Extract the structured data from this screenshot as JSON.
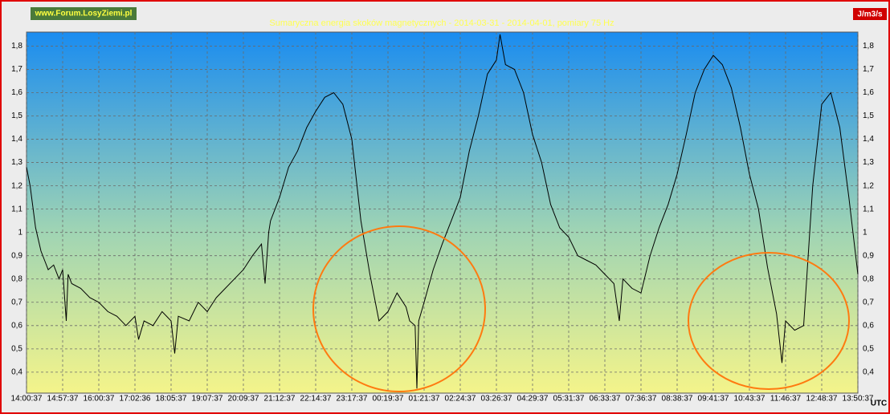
{
  "chart_data": {
    "type": "line",
    "title": "Sumaryczna energia skoków magnetycznych - 2014-03-31 - 2014-04-01, pomiary 75 Hz",
    "watermark": "www.Forum.LosyZiemi.pl",
    "unit": "J/m3/s",
    "x_label": "UTC",
    "grid": true,
    "xlim": [
      0,
      23
    ],
    "xticks": [
      {
        "value": 0,
        "label": "14:00:37"
      },
      {
        "value": 1,
        "label": "14:57:37"
      },
      {
        "value": 2,
        "label": "16:00:37"
      },
      {
        "value": 3,
        "label": "17:02:36"
      },
      {
        "value": 4,
        "label": "18:05:37"
      },
      {
        "value": 5,
        "label": "19:07:37"
      },
      {
        "value": 6,
        "label": "20:09:37"
      },
      {
        "value": 7,
        "label": "21:12:37"
      },
      {
        "value": 8,
        "label": "22:14:37"
      },
      {
        "value": 9,
        "label": "23:17:37"
      },
      {
        "value": 10,
        "label": "00:19:37"
      },
      {
        "value": 11,
        "label": "01:21:37"
      },
      {
        "value": 12,
        "label": "02:24:37"
      },
      {
        "value": 13,
        "label": "03:26:37"
      },
      {
        "value": 14,
        "label": "04:29:37"
      },
      {
        "value": 15,
        "label": "05:31:37"
      },
      {
        "value": 16,
        "label": "06:33:37"
      },
      {
        "value": 17,
        "label": "07:36:37"
      },
      {
        "value": 18,
        "label": "08:38:37"
      },
      {
        "value": 19,
        "label": "09:41:37"
      },
      {
        "value": 20,
        "label": "10:43:37"
      },
      {
        "value": 21,
        "label": "11:46:37"
      },
      {
        "value": 22,
        "label": "12:48:37"
      },
      {
        "value": 23,
        "label": "13:50:37"
      }
    ],
    "ylim": [
      0.31,
      1.86
    ],
    "yticks": [
      {
        "value": 0.4,
        "label": "0,4"
      },
      {
        "value": 0.5,
        "label": "0,5"
      },
      {
        "value": 0.6,
        "label": "0,6"
      },
      {
        "value": 0.7,
        "label": "0,7"
      },
      {
        "value": 0.8,
        "label": "0,8"
      },
      {
        "value": 0.9,
        "label": "0,9"
      },
      {
        "value": 1,
        "label": "1"
      },
      {
        "value": 1.1,
        "label": "1,1"
      },
      {
        "value": 1.2,
        "label": "1,2"
      },
      {
        "value": 1.3,
        "label": "1,3"
      },
      {
        "value": 1.4,
        "label": "1,4"
      },
      {
        "value": 1.5,
        "label": "1,5"
      },
      {
        "value": 1.6,
        "label": "1,6"
      },
      {
        "value": 1.7,
        "label": "1,7"
      },
      {
        "value": 1.8,
        "label": "1,8"
      }
    ],
    "x": [
      0,
      0.1,
      0.25,
      0.4,
      0.5,
      0.6,
      0.75,
      0.9,
      1,
      1.1,
      1.15,
      1.25,
      1.5,
      1.75,
      2,
      2.25,
      2.5,
      2.75,
      3,
      3.1,
      3.25,
      3.5,
      3.75,
      4,
      4.1,
      4.2,
      4.5,
      4.75,
      5,
      5.25,
      5.5,
      5.75,
      6,
      6.25,
      6.5,
      6.6,
      6.7,
      6.75,
      7,
      7.25,
      7.5,
      7.75,
      8,
      8.25,
      8.5,
      8.75,
      9,
      9.25,
      9.5,
      9.75,
      10,
      10.25,
      10.5,
      10.6,
      10.75,
      10.8,
      10.85,
      11,
      11.25,
      11.5,
      11.75,
      12,
      12.25,
      12.5,
      12.75,
      13,
      13.1,
      13.25,
      13.5,
      13.75,
      14,
      14.25,
      14.5,
      14.75,
      15,
      15.25,
      15.5,
      15.75,
      16,
      16.25,
      16.4,
      16.5,
      16.75,
      17,
      17.25,
      17.5,
      17.75,
      18,
      18.25,
      18.5,
      18.75,
      19,
      19.25,
      19.5,
      19.75,
      20,
      20.25,
      20.5,
      20.75,
      20.9,
      21,
      21.25,
      21.5,
      21.75,
      22,
      22.25,
      22.5,
      22.75,
      23
    ],
    "series": [
      {
        "color": "#000000",
        "values": [
          1.28,
          1.2,
          1.02,
          0.92,
          0.88,
          0.84,
          0.86,
          0.8,
          0.84,
          0.62,
          0.82,
          0.78,
          0.76,
          0.72,
          0.7,
          0.66,
          0.64,
          0.6,
          0.64,
          0.54,
          0.62,
          0.6,
          0.66,
          0.62,
          0.48,
          0.64,
          0.62,
          0.7,
          0.66,
          0.72,
          0.76,
          0.8,
          0.84,
          0.9,
          0.95,
          0.78,
          1.0,
          1.05,
          1.15,
          1.28,
          1.35,
          1.45,
          1.52,
          1.58,
          1.6,
          1.55,
          1.4,
          1.05,
          0.82,
          0.62,
          0.66,
          0.74,
          0.68,
          0.62,
          0.6,
          0.33,
          0.62,
          0.7,
          0.84,
          0.95,
          1.05,
          1.15,
          1.35,
          1.5,
          1.68,
          1.74,
          1.85,
          1.72,
          1.7,
          1.6,
          1.42,
          1.3,
          1.12,
          1.02,
          0.98,
          0.9,
          0.88,
          0.86,
          0.82,
          0.78,
          0.62,
          0.8,
          0.76,
          0.74,
          0.9,
          1.02,
          1.12,
          1.25,
          1.42,
          1.6,
          1.7,
          1.76,
          1.72,
          1.62,
          1.45,
          1.25,
          1.1,
          0.85,
          0.65,
          0.44,
          0.62,
          0.58,
          0.6,
          1.2,
          1.55,
          1.6,
          1.45,
          1.15,
          0.82
        ]
      }
    ]
  }
}
